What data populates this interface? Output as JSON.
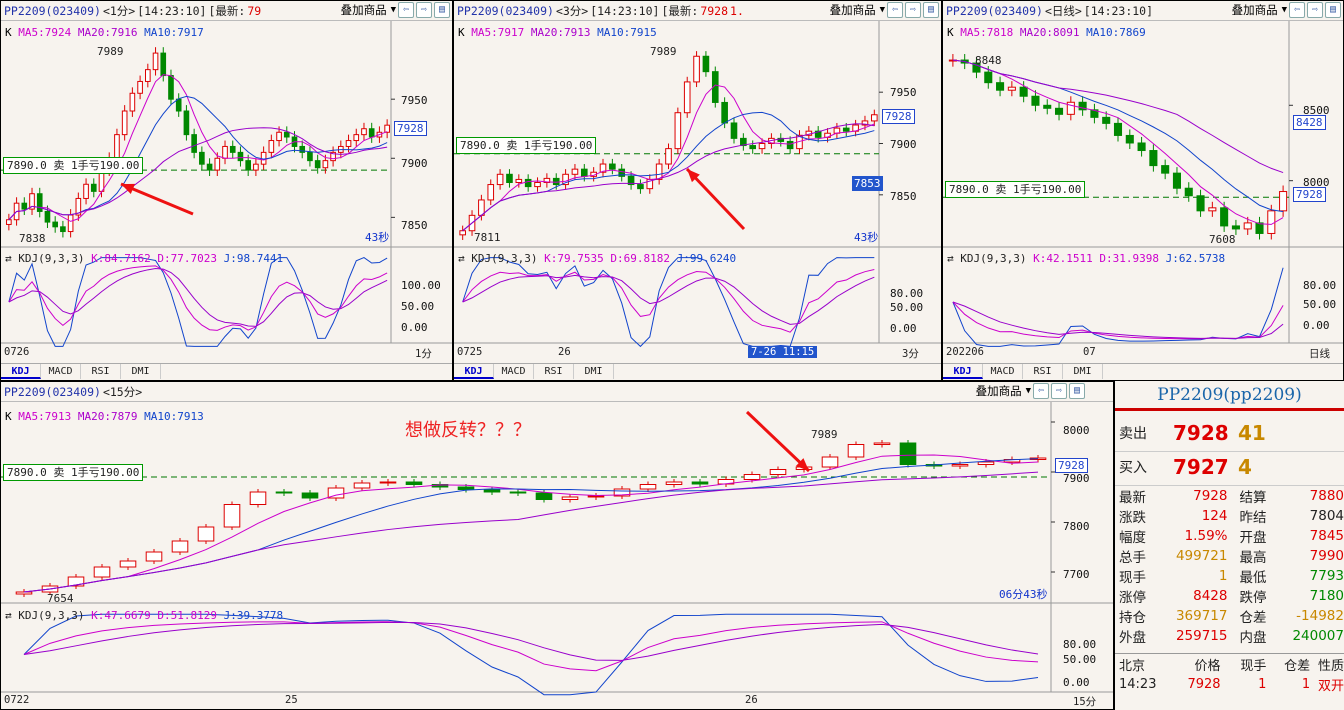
{
  "panel1": {
    "header": {
      "symbol": "PP2209(023409)",
      "period": "<1分>",
      "time": "[14:23:10]",
      "last_label": "[最新:",
      "last_value": "79",
      "overlay": "叠加商品"
    },
    "ma": {
      "k": "K",
      "ma5": "MA5:7924",
      "ma20": "MA20:7916",
      "ma10": "MA10:7917"
    },
    "high_label": "7989",
    "low_label": "7838",
    "order": "7890.0 卖 1手亏190.00",
    "price_tag": "7928",
    "axis": [
      "7950",
      "7900",
      "7850"
    ],
    "countdown": "43秒",
    "kdj": {
      "name": "KDJ(9,3,3)",
      "k": "K:84.7162",
      "d": "D:77.7023",
      "j": "J:98.7441",
      "axis": [
        "100.00",
        "50.00",
        "0.00"
      ]
    },
    "footer": {
      "date": "0726",
      "period": "1分"
    },
    "candles": [
      7848,
      7862,
      7857,
      7870,
      7855,
      7846,
      7842,
      7838,
      7852,
      7866,
      7878,
      7872,
      7890,
      7900,
      7920,
      7940,
      7955,
      7965,
      7975,
      7989,
      7970,
      7950,
      7940,
      7920,
      7905,
      7895,
      7890,
      7900,
      7910,
      7905,
      7898,
      7890,
      7895,
      7905,
      7915,
      7922,
      7918,
      7910,
      7905,
      7898,
      7892,
      7898,
      7905,
      7910,
      7915,
      7920,
      7925,
      7918,
      7922,
      7928
    ]
  },
  "panel2": {
    "header": {
      "symbol": "PP2209(023409)",
      "period": "<3分>",
      "time": "[14:23:10]",
      "last_label": "[最新:",
      "last_value": "7928",
      "change": "1.",
      "overlay": "叠加商品"
    },
    "ma": {
      "k": "K",
      "ma5": "MA5:7917",
      "ma20": "MA20:7913",
      "ma10": "MA10:7915"
    },
    "high_label": "7989",
    "low_label": "7811",
    "order": "7890.0 卖 1手亏190.00",
    "price_tag": "7928",
    "blue_tag": "7853",
    "axis": [
      "7950",
      "7900",
      "7850"
    ],
    "countdown": "43秒",
    "kdj": {
      "name": "KDJ(9,3,3)",
      "k": "K:79.7535",
      "d": "D:69.8182",
      "j": "J:99.6240",
      "axis": [
        "80.00",
        "50.00",
        "0.00"
      ]
    },
    "footer": {
      "date": "0725",
      "mid": "26",
      "cursor": "7-26 11:15",
      "period": "3分"
    },
    "candles": [
      7815,
      7830,
      7845,
      7860,
      7870,
      7862,
      7865,
      7858,
      7862,
      7866,
      7860,
      7870,
      7875,
      7868,
      7872,
      7880,
      7875,
      7868,
      7860,
      7856,
      7865,
      7880,
      7895,
      7930,
      7960,
      7985,
      7970,
      7940,
      7920,
      7905,
      7898,
      7895,
      7900,
      7905,
      7902,
      7895,
      7908,
      7912,
      7906,
      7910,
      7915,
      7912,
      7918,
      7922,
      7928
    ]
  },
  "panel3": {
    "header": {
      "symbol": "PP2209(023409)",
      "period": "<日线>",
      "time": "[14:23:10]",
      "overlay": "叠加商品"
    },
    "ma": {
      "k": "K",
      "ma5": "MA5:7818",
      "ma20": "MA20:8091",
      "ma10": "MA10:7869"
    },
    "high_label": "8848",
    "low_label": "7608",
    "order": "7890.0 卖 1手亏190.00",
    "price_tag": "8428",
    "price_tag2": "7928",
    "axis": [
      "8500",
      "8000"
    ],
    "kdj": {
      "name": "KDJ(9,3,3)",
      "k": "K:42.1511",
      "d": "D:31.9398",
      "j": "J:62.5738",
      "axis": [
        "80.00",
        "50.00",
        "0.00"
      ]
    },
    "footer": {
      "date": "202206",
      "mid": "07",
      "period": "日线"
    },
    "candles": [
      8800,
      8780,
      8720,
      8650,
      8600,
      8620,
      8560,
      8500,
      8480,
      8440,
      8520,
      8470,
      8420,
      8380,
      8300,
      8250,
      8200,
      8100,
      8050,
      7950,
      7900,
      7800,
      7820,
      7700,
      7680,
      7720,
      7650,
      7800,
      7928
    ]
  },
  "panel4": {
    "header": {
      "symbol": "PP2209(023409)",
      "period": "<15分>",
      "overlay": "叠加商品"
    },
    "ma": {
      "k": "K",
      "ma5": "MA5:7913",
      "ma20": "MA20:7879",
      "ma10": "MA10:7913"
    },
    "annotation": "想做反转？？？",
    "high_label": "7989",
    "low_label": "7654",
    "order": "7890.0 卖 1手亏190.00",
    "price_tag": "7928",
    "axis": [
      "8000",
      "7900",
      "7800",
      "7700"
    ],
    "countdown": "06分43秒",
    "kdj": {
      "name": "KDJ(9,3,3)",
      "k": "K:47.6679",
      "d": "D:51.8129",
      "j": "J:39.3778",
      "axis": [
        "80.00",
        "50.00",
        "0.00"
      ]
    },
    "footer": {
      "date": "0722",
      "mid1": "25",
      "mid2": "26",
      "period": "15分"
    },
    "candles": [
      7660,
      7672,
      7690,
      7710,
      7722,
      7740,
      7762,
      7790,
      7835,
      7860,
      7858,
      7848,
      7868,
      7878,
      7880,
      7875,
      7870,
      7865,
      7860,
      7858,
      7845,
      7850,
      7852,
      7866,
      7875,
      7880,
      7876,
      7885,
      7895,
      7905,
      7910,
      7930,
      7955,
      7958,
      7915,
      7912,
      7915,
      7920,
      7925,
      7928
    ]
  },
  "tabs": {
    "kdj": "KDJ",
    "macd": "MACD",
    "rsi": "RSI",
    "dmi": "DMI"
  },
  "quote": {
    "title": "PP2209(pp2209)",
    "sell_label": "卖出",
    "sell_price": "7928",
    "sell_vol": "41",
    "buy_label": "买入",
    "buy_price": "7927",
    "buy_vol": "4",
    "rows": [
      {
        "l1": "最新",
        "v1": "7928",
        "l2": "结算",
        "v2": "7880"
      },
      {
        "l1": "涨跌",
        "v1": "124",
        "l2": "昨结",
        "v2": "7804"
      },
      {
        "l1": "幅度",
        "v1": "1.59%",
        "l2": "开盘",
        "v2": "7845"
      },
      {
        "l1": "总手",
        "v1": "499721",
        "l2": "最高",
        "v2": "7990"
      },
      {
        "l1": "现手",
        "v1": "1",
        "l2": "最低",
        "v2": "7793"
      },
      {
        "l1": "涨停",
        "v1": "8428",
        "l2": "跌停",
        "v2": "7180"
      },
      {
        "l1": "持仓",
        "v1": "369717",
        "l2": "仓差",
        "v2": "-14982"
      },
      {
        "l1": "外盘",
        "v1": "259715",
        "l2": "内盘",
        "v2": "240007"
      }
    ],
    "tick_headers": [
      "北京",
      "价格",
      "现手",
      "仓差",
      "性质"
    ],
    "tick_row": [
      "14:23",
      "7928",
      "1",
      "1",
      "双开"
    ]
  },
  "colors": {
    "up": "#dd0000",
    "down": "#008800",
    "ma5": "#cc00cc",
    "ma10": "#1144cc",
    "ma20": "#9900cc",
    "dash": "#007700"
  }
}
